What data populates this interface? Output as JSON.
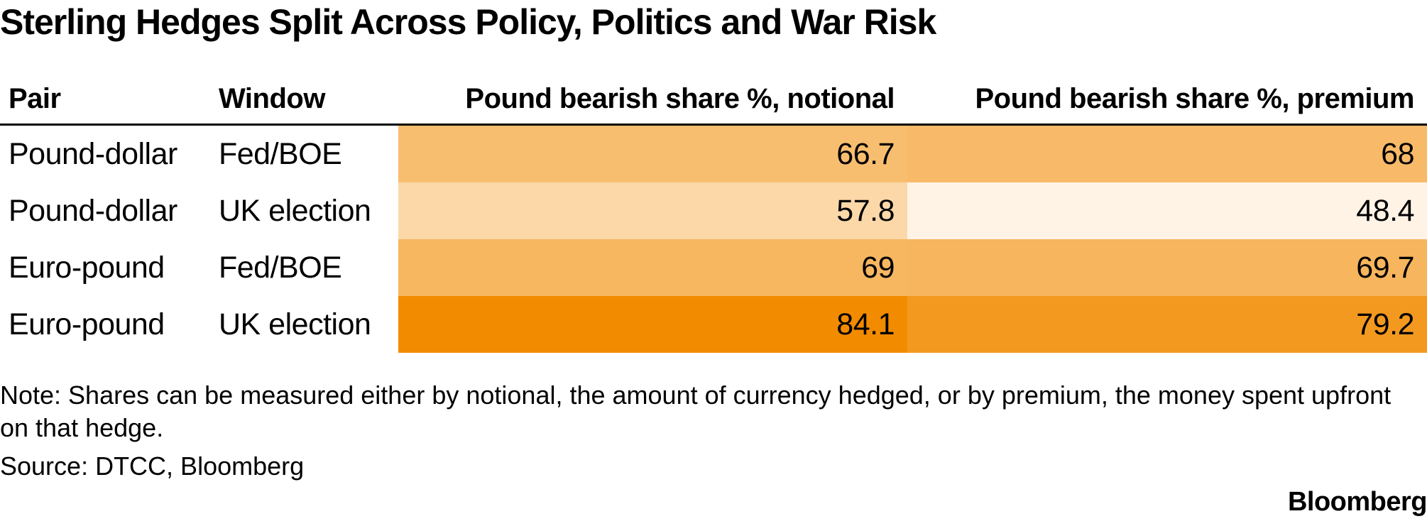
{
  "title": "Sterling Hedges Split Across Policy, Politics and War Risk",
  "chart_data": {
    "type": "table",
    "title": "Sterling Hedges Split Across Policy, Politics and War Risk",
    "columns": [
      "Pair",
      "Window",
      "Pound bearish share %, notional",
      "Pound bearish share %, premium"
    ],
    "rows": [
      {
        "pair": "Pound-dollar",
        "window": "Fed/BOE",
        "notional": "66.7",
        "premium": "68"
      },
      {
        "pair": "Pound-dollar",
        "window": "UK election",
        "notional": "57.8",
        "premium": "48.4"
      },
      {
        "pair": "Euro-pound",
        "window": "Fed/BOE",
        "notional": "69",
        "premium": "69.7"
      },
      {
        "pair": "Euro-pound",
        "window": "UK election",
        "notional": "84.1",
        "premium": "79.2"
      }
    ],
    "color_scale": {
      "min_value": 48.4,
      "max_value": 84.1,
      "low_color": "#fff3e6",
      "high_color": "#f28b00"
    }
  },
  "note": "Note: Shares can be measured either by notional, the amount of currency hedged, or by premium, the money spent upfront on that hedge.",
  "source": "Source: DTCC, Bloomberg",
  "brand": "Bloomberg"
}
